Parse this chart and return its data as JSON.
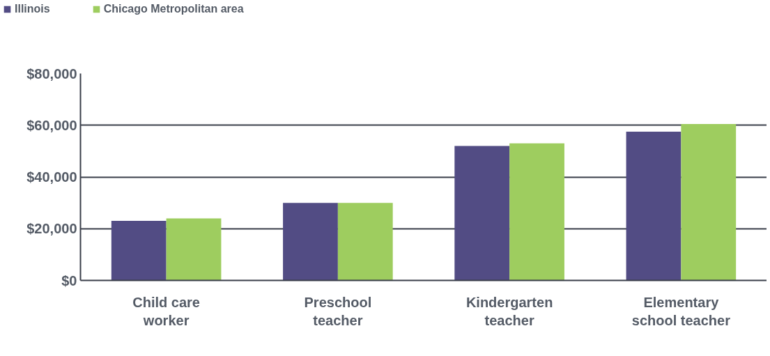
{
  "chart_data": {
    "type": "bar",
    "categories": [
      "Child care worker",
      "Preschool teacher",
      "Kindergarten teacher",
      "Elementary school teacher"
    ],
    "series": [
      {
        "name": "Illinois",
        "color": "#524c84",
        "values": [
          23000,
          30000,
          52000,
          57500
        ]
      },
      {
        "name": "Chicago Metropolitan area",
        "color": "#9ecd5f",
        "values": [
          24000,
          30000,
          53000,
          60500
        ]
      }
    ],
    "ylim": [
      0,
      80000
    ],
    "yticks": [
      {
        "value": 0,
        "label": "$0"
      },
      {
        "value": 20000,
        "label": "$20,000"
      },
      {
        "value": 40000,
        "label": "$40,000"
      },
      {
        "value": 60000,
        "label": "$60,000"
      },
      {
        "value": 80000,
        "label": "$80,000"
      }
    ],
    "grid": "y",
    "legend": "top left"
  }
}
